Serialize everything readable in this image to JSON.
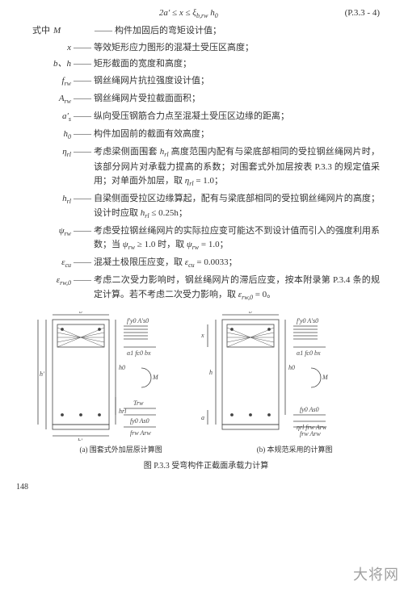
{
  "equation": {
    "formula": "2a′ ≤ x ≤ ξb,rw h0",
    "number": "(P.3.3 - 4)"
  },
  "lead": "式中",
  "defs": [
    {
      "sym": "M",
      "text": "构件加固后的弯矩设计值；"
    },
    {
      "sym": "x",
      "text": "等效矩形应力图形的混凝土受压区高度；"
    },
    {
      "sym": "b、h",
      "text": "矩形截面的宽度和高度；"
    },
    {
      "sym": "f_rw",
      "text": "钢丝绳网片抗拉强度设计值；"
    },
    {
      "sym": "A_rw",
      "text": "钢丝绳网片受拉截面面积；"
    },
    {
      "sym": "a′_s",
      "text": "纵向受压钢筋合力点至混凝土受压区边缘的距离；"
    },
    {
      "sym": "h_0",
      "text": "构件加固前的截面有效高度；"
    },
    {
      "sym": "η_rl",
      "text": "考虑梁侧面围套 h_rl 高度范围内配有与梁底部相同的受拉钢丝绳网片时，该部分网片对承载力提高的系数；对围套式外加层按表 P.3.3 的规定值采用；对单面外加层，取 η_rl = 1.0；"
    },
    {
      "sym": "h_rl",
      "text": "自梁侧面受拉区边缘算起，配有与梁底部相同的受拉钢丝绳网片的高度；设计时应取 h_rl ≤ 0.25h；"
    },
    {
      "sym": "ψ_rw",
      "text": "考虑受拉钢丝绳网片的实际拉应变可能达不到设计值而引入的强度利用系数；当 ψ_rw ≥ 1.0 时，取 ψ_rw = 1.0；"
    },
    {
      "sym": "ε_cu",
      "text": "混凝土极限压应变，取 ε_cu = 0.0033；"
    },
    {
      "sym": "ε_rw,0",
      "text": "考虑二次受力影响时，钢丝绳网片的滞后应变，按本附录第 P.3.4 条的规定计算。若不考虑二次受力影响，取 ε_rw,0 = 0。"
    }
  ],
  "figure": {
    "sub_a": "(a) 围套式外加层原计算图",
    "sub_b": "(b) 本规范采用的计算图",
    "caption": "图 P.3.3  受弯构件正截面承载力计算",
    "labels": {
      "b": "b",
      "bp": "b′",
      "h": "h",
      "h0": "h0",
      "hp": "h′",
      "hrl": "hrl",
      "a": "a",
      "x": "x",
      "M": "M",
      "fpA": "f′y0 A′s0",
      "a1fc": "α1 fc0 bx",
      "Trw": "Trw",
      "fy0As0": "fy0 As0",
      "frwArw": "frw Arw",
      "etafrw": "ηrl frw Arw"
    }
  },
  "pagenum": "148",
  "watermark": "大将网",
  "colors": {
    "text": "#333333",
    "line": "#444444",
    "hatch": "#555555",
    "bg": "#ffffff"
  }
}
